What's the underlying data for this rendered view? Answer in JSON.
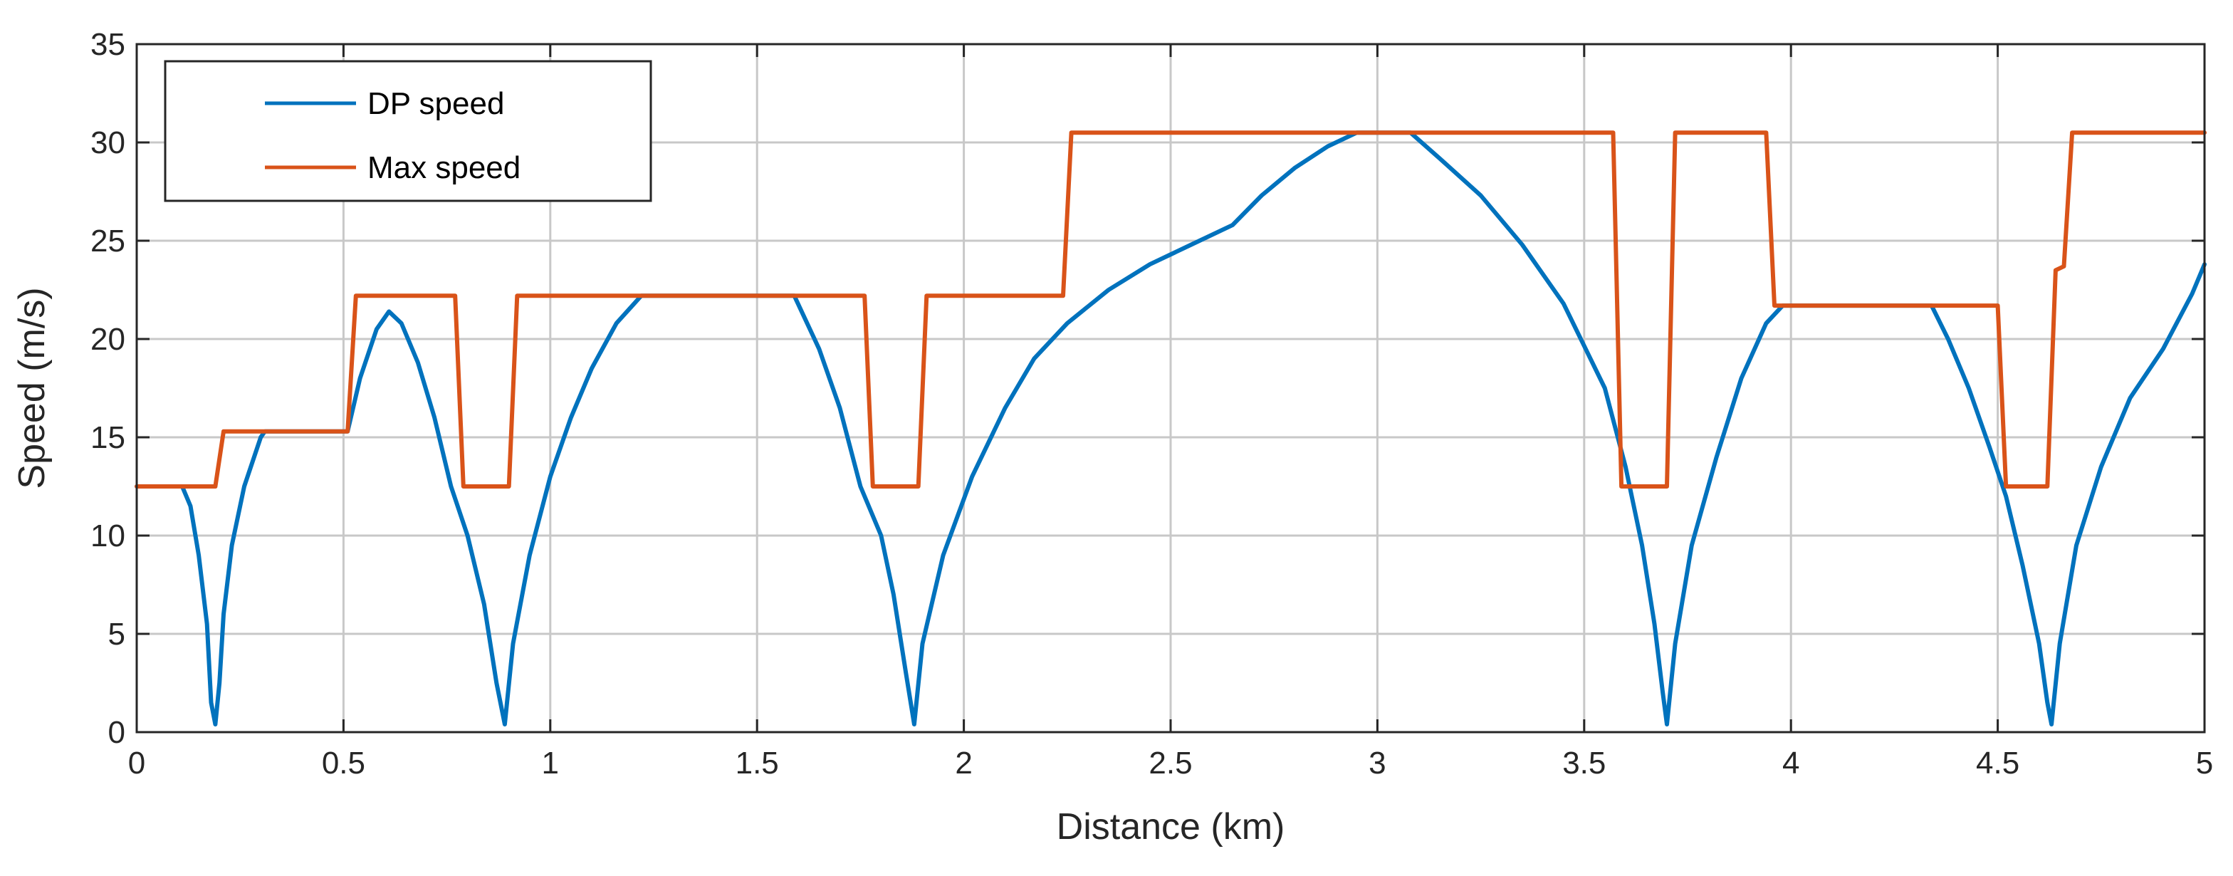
{
  "chart_data": {
    "type": "line",
    "title": "",
    "xlabel": "Distance (km)",
    "ylabel": "Speed (m/s)",
    "xlim": [
      0,
      5
    ],
    "ylim": [
      0,
      35
    ],
    "xticks": [
      0,
      0.5,
      1,
      1.5,
      2,
      2.5,
      3,
      3.5,
      4,
      4.5,
      5
    ],
    "xtick_labels": [
      "0",
      "0.5",
      "1",
      "1.5",
      "2",
      "2.5",
      "3",
      "3.5",
      "4",
      "4.5",
      "5"
    ],
    "yticks": [
      0,
      5,
      10,
      15,
      20,
      25,
      30,
      35
    ],
    "ytick_labels": [
      "0",
      "5",
      "10",
      "15",
      "20",
      "25",
      "30",
      "35"
    ],
    "grid": true,
    "legend_position": "top-left",
    "series": [
      {
        "name": "DP speed",
        "color": "#0072BD",
        "points": [
          [
            0,
            12.5
          ],
          [
            0.11,
            12.5
          ],
          [
            0.13,
            11.5
          ],
          [
            0.15,
            9.0
          ],
          [
            0.17,
            5.5
          ],
          [
            0.18,
            1.5
          ],
          [
            0.19,
            0.4
          ],
          [
            0.2,
            2.5
          ],
          [
            0.21,
            6.0
          ],
          [
            0.23,
            9.5
          ],
          [
            0.26,
            12.5
          ],
          [
            0.3,
            15.0
          ],
          [
            0.31,
            15.3
          ],
          [
            0.51,
            15.3
          ],
          [
            0.54,
            18.0
          ],
          [
            0.58,
            20.5
          ],
          [
            0.61,
            21.4
          ],
          [
            0.64,
            20.8
          ],
          [
            0.68,
            18.8
          ],
          [
            0.72,
            16.0
          ],
          [
            0.76,
            12.5
          ],
          [
            0.8,
            10.0
          ],
          [
            0.84,
            6.5
          ],
          [
            0.87,
            2.5
          ],
          [
            0.89,
            0.4
          ],
          [
            0.91,
            4.5
          ],
          [
            0.95,
            9.0
          ],
          [
            1.0,
            13.0
          ],
          [
            1.05,
            16.0
          ],
          [
            1.1,
            18.5
          ],
          [
            1.16,
            20.8
          ],
          [
            1.22,
            22.2
          ],
          [
            1.59,
            22.2
          ],
          [
            1.65,
            19.5
          ],
          [
            1.7,
            16.5
          ],
          [
            1.75,
            12.5
          ],
          [
            1.8,
            10.0
          ],
          [
            1.83,
            7.0
          ],
          [
            1.86,
            3.0
          ],
          [
            1.88,
            0.4
          ],
          [
            1.9,
            4.5
          ],
          [
            1.95,
            9.0
          ],
          [
            2.02,
            13.0
          ],
          [
            2.1,
            16.5
          ],
          [
            2.17,
            19.0
          ],
          [
            2.25,
            20.8
          ],
          [
            2.35,
            22.5
          ],
          [
            2.45,
            23.8
          ],
          [
            2.55,
            24.8
          ],
          [
            2.65,
            25.8
          ],
          [
            2.72,
            27.3
          ],
          [
            2.8,
            28.7
          ],
          [
            2.88,
            29.8
          ],
          [
            2.95,
            30.5
          ],
          [
            3.08,
            30.5
          ],
          [
            3.15,
            29.2
          ],
          [
            3.25,
            27.3
          ],
          [
            3.35,
            24.8
          ],
          [
            3.45,
            21.8
          ],
          [
            3.55,
            17.5
          ],
          [
            3.6,
            13.5
          ],
          [
            3.64,
            9.5
          ],
          [
            3.67,
            5.5
          ],
          [
            3.69,
            2.0
          ],
          [
            3.7,
            0.4
          ],
          [
            3.72,
            4.5
          ],
          [
            3.76,
            9.5
          ],
          [
            3.82,
            14.0
          ],
          [
            3.88,
            18.0
          ],
          [
            3.94,
            20.8
          ],
          [
            3.98,
            21.7
          ],
          [
            4.34,
            21.7
          ],
          [
            4.38,
            20.0
          ],
          [
            4.43,
            17.5
          ],
          [
            4.48,
            14.5
          ],
          [
            4.52,
            12.0
          ],
          [
            4.56,
            8.5
          ],
          [
            4.6,
            4.5
          ],
          [
            4.62,
            1.5
          ],
          [
            4.63,
            0.4
          ],
          [
            4.65,
            4.5
          ],
          [
            4.69,
            9.5
          ],
          [
            4.75,
            13.5
          ],
          [
            4.82,
            17.0
          ],
          [
            4.9,
            19.5
          ],
          [
            4.97,
            22.3
          ],
          [
            5.0,
            23.8
          ]
        ]
      },
      {
        "name": "Max speed",
        "color": "#D95319",
        "points": [
          [
            0,
            12.5
          ],
          [
            0.19,
            12.5
          ],
          [
            0.21,
            15.3
          ],
          [
            0.51,
            15.3
          ],
          [
            0.53,
            22.2
          ],
          [
            0.77,
            22.2
          ],
          [
            0.79,
            12.5
          ],
          [
            0.9,
            12.5
          ],
          [
            0.92,
            22.2
          ],
          [
            1.76,
            22.2
          ],
          [
            1.78,
            12.5
          ],
          [
            1.89,
            12.5
          ],
          [
            1.91,
            22.2
          ],
          [
            2.24,
            22.2
          ],
          [
            2.26,
            30.5
          ],
          [
            3.57,
            30.5
          ],
          [
            3.59,
            12.5
          ],
          [
            3.7,
            12.5
          ],
          [
            3.72,
            30.5
          ],
          [
            3.94,
            30.5
          ],
          [
            3.96,
            21.7
          ],
          [
            4.5,
            21.7
          ],
          [
            4.52,
            12.5
          ],
          [
            4.62,
            12.5
          ],
          [
            4.64,
            23.5
          ],
          [
            4.66,
            23.7
          ],
          [
            4.68,
            30.5
          ],
          [
            5.0,
            30.5
          ]
        ]
      }
    ]
  }
}
